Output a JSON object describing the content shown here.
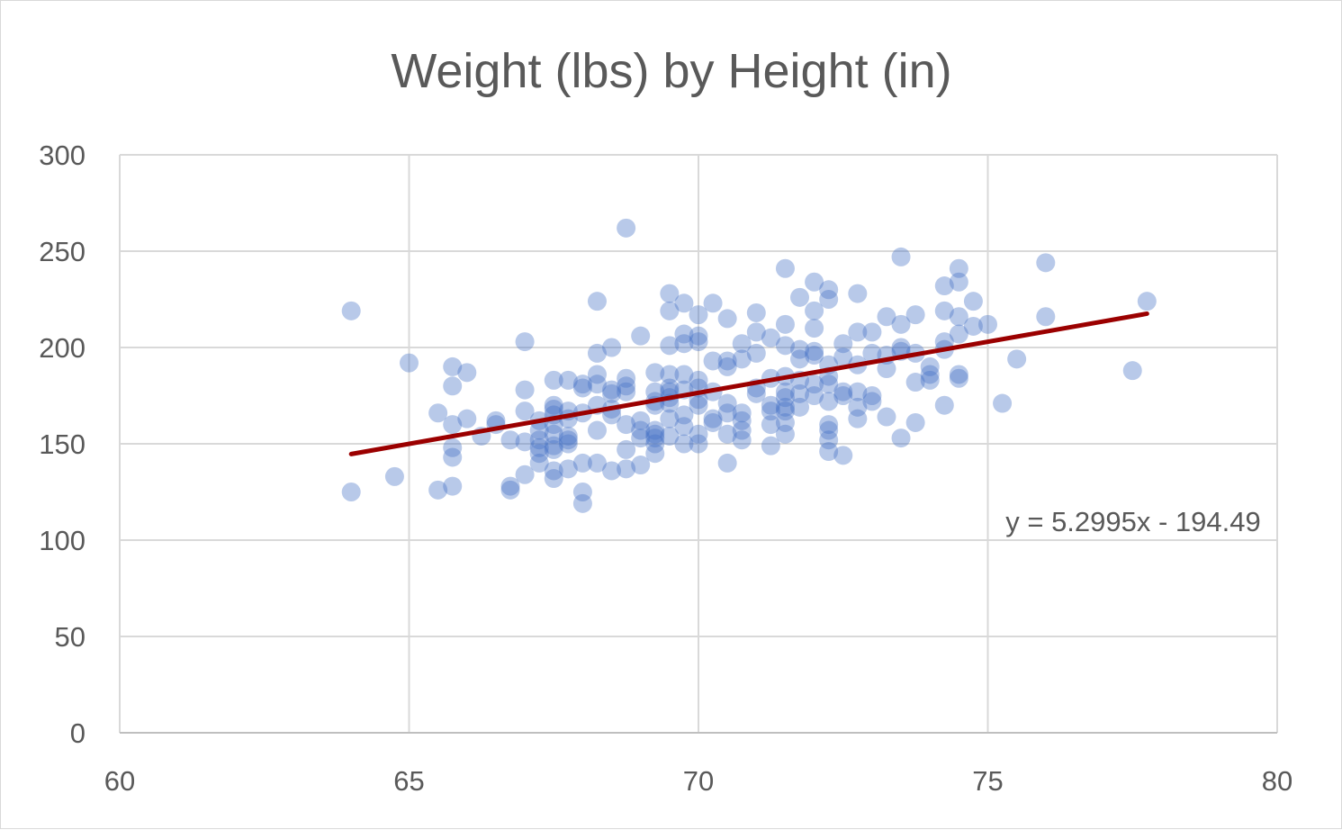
{
  "chart_data": {
    "type": "scatter",
    "title": "Weight (lbs) by Height (in)",
    "xlabel": "",
    "ylabel": "",
    "xlim": [
      60,
      80
    ],
    "ylim": [
      0,
      300
    ],
    "x_ticks": [
      "60",
      "65",
      "70",
      "75",
      "80"
    ],
    "y_ticks": [
      "0",
      "50",
      "100",
      "150",
      "200",
      "250",
      "300"
    ],
    "grid": true,
    "series": [
      {
        "name": "Weight",
        "color": "#4472c4",
        "points": [
          [
            64.0,
            219
          ],
          [
            64.0,
            125
          ],
          [
            64.75,
            133
          ],
          [
            65.0,
            192
          ],
          [
            65.5,
            166
          ],
          [
            65.5,
            126
          ],
          [
            65.75,
            190
          ],
          [
            65.75,
            180
          ],
          [
            65.75,
            160
          ],
          [
            65.75,
            148
          ],
          [
            65.75,
            143
          ],
          [
            65.75,
            128
          ],
          [
            66.0,
            187
          ],
          [
            66.0,
            163
          ],
          [
            66.25,
            154
          ],
          [
            66.5,
            162
          ],
          [
            66.5,
            160
          ],
          [
            66.75,
            152
          ],
          [
            66.75,
            128
          ],
          [
            66.75,
            126
          ],
          [
            67.0,
            203
          ],
          [
            67.0,
            178
          ],
          [
            67.0,
            167
          ],
          [
            67.0,
            151
          ],
          [
            67.0,
            134
          ],
          [
            67.25,
            162
          ],
          [
            67.25,
            157
          ],
          [
            67.25,
            152
          ],
          [
            67.25,
            148
          ],
          [
            67.25,
            145
          ],
          [
            67.25,
            140
          ],
          [
            67.5,
            183
          ],
          [
            67.5,
            170
          ],
          [
            67.5,
            168
          ],
          [
            67.5,
            165
          ],
          [
            67.5,
            160
          ],
          [
            67.5,
            155
          ],
          [
            67.5,
            149
          ],
          [
            67.5,
            147
          ],
          [
            67.5,
            136
          ],
          [
            67.5,
            132
          ],
          [
            67.75,
            183
          ],
          [
            67.75,
            167
          ],
          [
            67.75,
            163
          ],
          [
            67.75,
            154
          ],
          [
            67.75,
            152
          ],
          [
            67.75,
            150
          ],
          [
            67.75,
            137
          ],
          [
            68.0,
            181
          ],
          [
            68.0,
            179
          ],
          [
            68.0,
            166
          ],
          [
            68.0,
            140
          ],
          [
            68.0,
            125
          ],
          [
            68.0,
            119
          ],
          [
            68.25,
            224
          ],
          [
            68.25,
            197
          ],
          [
            68.25,
            186
          ],
          [
            68.25,
            181
          ],
          [
            68.25,
            170
          ],
          [
            68.25,
            157
          ],
          [
            68.25,
            140
          ],
          [
            68.5,
            200
          ],
          [
            68.5,
            178
          ],
          [
            68.5,
            176
          ],
          [
            68.5,
            168
          ],
          [
            68.5,
            165
          ],
          [
            68.5,
            136
          ],
          [
            68.75,
            262
          ],
          [
            68.75,
            184
          ],
          [
            68.75,
            180
          ],
          [
            68.75,
            177
          ],
          [
            68.75,
            160
          ],
          [
            68.75,
            147
          ],
          [
            68.75,
            137
          ],
          [
            69.0,
            206
          ],
          [
            69.0,
            162
          ],
          [
            69.0,
            157
          ],
          [
            69.0,
            153
          ],
          [
            69.0,
            139
          ],
          [
            69.25,
            187
          ],
          [
            69.25,
            177
          ],
          [
            69.25,
            172
          ],
          [
            69.25,
            170
          ],
          [
            69.25,
            157
          ],
          [
            69.25,
            155
          ],
          [
            69.25,
            153
          ],
          [
            69.25,
            150
          ],
          [
            69.25,
            145
          ],
          [
            69.5,
            228
          ],
          [
            69.5,
            219
          ],
          [
            69.5,
            201
          ],
          [
            69.5,
            186
          ],
          [
            69.5,
            179
          ],
          [
            69.5,
            177
          ],
          [
            69.5,
            174
          ],
          [
            69.5,
            171
          ],
          [
            69.5,
            163
          ],
          [
            69.5,
            154
          ],
          [
            69.75,
            223
          ],
          [
            69.75,
            207
          ],
          [
            69.75,
            202
          ],
          [
            69.75,
            186
          ],
          [
            69.75,
            178
          ],
          [
            69.75,
            165
          ],
          [
            69.75,
            159
          ],
          [
            69.75,
            150
          ],
          [
            70.0,
            217
          ],
          [
            70.0,
            206
          ],
          [
            70.0,
            203
          ],
          [
            70.0,
            183
          ],
          [
            70.0,
            179
          ],
          [
            70.0,
            173
          ],
          [
            70.0,
            170
          ],
          [
            70.0,
            155
          ],
          [
            70.0,
            150
          ],
          [
            70.25,
            223
          ],
          [
            70.25,
            193
          ],
          [
            70.25,
            177
          ],
          [
            70.25,
            163
          ],
          [
            70.25,
            161
          ],
          [
            70.5,
            215
          ],
          [
            70.5,
            193
          ],
          [
            70.5,
            190
          ],
          [
            70.5,
            171
          ],
          [
            70.5,
            166
          ],
          [
            70.5,
            155
          ],
          [
            70.5,
            140
          ],
          [
            70.75,
            202
          ],
          [
            70.75,
            194
          ],
          [
            70.75,
            166
          ],
          [
            70.75,
            162
          ],
          [
            70.75,
            157
          ],
          [
            70.75,
            152
          ],
          [
            71.0,
            218
          ],
          [
            71.0,
            208
          ],
          [
            71.0,
            197
          ],
          [
            71.0,
            179
          ],
          [
            71.0,
            176
          ],
          [
            71.25,
            205
          ],
          [
            71.25,
            184
          ],
          [
            71.25,
            170
          ],
          [
            71.25,
            167
          ],
          [
            71.25,
            160
          ],
          [
            71.25,
            149
          ],
          [
            71.5,
            241
          ],
          [
            71.5,
            212
          ],
          [
            71.5,
            201
          ],
          [
            71.5,
            185
          ],
          [
            71.5,
            177
          ],
          [
            71.5,
            174
          ],
          [
            71.5,
            169
          ],
          [
            71.5,
            167
          ],
          [
            71.5,
            161
          ],
          [
            71.5,
            155
          ],
          [
            71.75,
            226
          ],
          [
            71.75,
            199
          ],
          [
            71.75,
            194
          ],
          [
            71.75,
            183
          ],
          [
            71.75,
            176
          ],
          [
            71.75,
            169
          ],
          [
            72.0,
            234
          ],
          [
            72.0,
            219
          ],
          [
            72.0,
            210
          ],
          [
            72.0,
            198
          ],
          [
            72.0,
            196
          ],
          [
            72.0,
            181
          ],
          [
            72.0,
            175
          ],
          [
            72.25,
            230
          ],
          [
            72.25,
            225
          ],
          [
            72.25,
            191
          ],
          [
            72.25,
            185
          ],
          [
            72.25,
            181
          ],
          [
            72.25,
            172
          ],
          [
            72.25,
            160
          ],
          [
            72.25,
            157
          ],
          [
            72.25,
            152
          ],
          [
            72.25,
            146
          ],
          [
            72.5,
            202
          ],
          [
            72.5,
            195
          ],
          [
            72.5,
            177
          ],
          [
            72.5,
            175
          ],
          [
            72.5,
            144
          ],
          [
            72.75,
            228
          ],
          [
            72.75,
            208
          ],
          [
            72.75,
            191
          ],
          [
            72.75,
            177
          ],
          [
            72.75,
            169
          ],
          [
            72.75,
            163
          ],
          [
            73.0,
            208
          ],
          [
            73.0,
            197
          ],
          [
            73.0,
            175
          ],
          [
            73.0,
            172
          ],
          [
            73.25,
            216
          ],
          [
            73.25,
            196
          ],
          [
            73.25,
            189
          ],
          [
            73.25,
            164
          ],
          [
            73.5,
            247
          ],
          [
            73.5,
            212
          ],
          [
            73.5,
            200
          ],
          [
            73.5,
            198
          ],
          [
            73.5,
            153
          ],
          [
            73.75,
            217
          ],
          [
            73.75,
            197
          ],
          [
            73.75,
            182
          ],
          [
            73.75,
            161
          ],
          [
            74.0,
            190
          ],
          [
            74.0,
            186
          ],
          [
            74.0,
            183
          ],
          [
            74.25,
            232
          ],
          [
            74.25,
            219
          ],
          [
            74.25,
            203
          ],
          [
            74.25,
            199
          ],
          [
            74.25,
            170
          ],
          [
            74.5,
            241
          ],
          [
            74.5,
            234
          ],
          [
            74.5,
            216
          ],
          [
            74.5,
            207
          ],
          [
            74.5,
            186
          ],
          [
            74.5,
            184
          ],
          [
            74.75,
            224
          ],
          [
            74.75,
            211
          ],
          [
            75.0,
            212
          ],
          [
            75.25,
            171
          ],
          [
            75.5,
            194
          ],
          [
            76.0,
            244
          ],
          [
            76.0,
            216
          ],
          [
            77.5,
            188
          ],
          [
            77.75,
            224
          ]
        ]
      }
    ],
    "trendline": {
      "slope": 5.2995,
      "intercept": -194.49,
      "x_range": [
        64,
        77.75
      ],
      "color": "#9b0000",
      "label": "y = 5.2995x - 194.49"
    }
  }
}
